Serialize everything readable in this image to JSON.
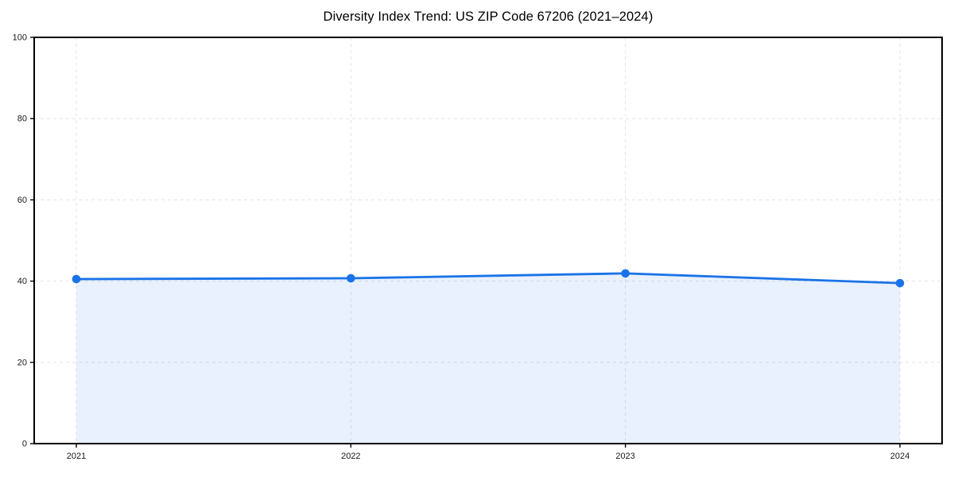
{
  "page": {
    "background": "#ffffff"
  },
  "chart_data": {
    "type": "area",
    "title": "Diversity Index Trend: US ZIP Code 67206 (2021–2024)",
    "x": [
      2021,
      2022,
      2023,
      2024
    ],
    "xtick_labels": [
      "2021",
      "2022",
      "2023",
      "2024"
    ],
    "series": [
      {
        "name": "Diversity Index",
        "values": [
          40.5,
          40.7,
          41.9,
          39.5
        ]
      }
    ],
    "xlabel": "",
    "ylabel": "",
    "ylim": [
      0,
      100
    ],
    "yticks": [
      0,
      20,
      40,
      60,
      80,
      100
    ],
    "grid": true,
    "grid_style": "dashed",
    "legend": "none",
    "colors": {
      "line": "#1a73e8",
      "marker": "#1a73e8",
      "fill": "#1a73e8",
      "fill_opacity": 0.1,
      "grid": "#e3e3e3",
      "spine": "#000000",
      "tick_text": "#1a1a1a",
      "title_text": "#000000"
    }
  }
}
